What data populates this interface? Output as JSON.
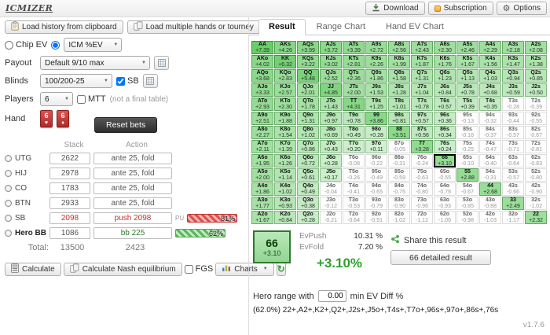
{
  "app": {
    "logo": "ICMIZER",
    "version": "v1.7.6"
  },
  "icons": {
    "caret": "▼",
    "gear": "⚙",
    "refresh": "↻"
  },
  "topbar": {
    "download": "Download",
    "subscription": "Subscription",
    "options": "Options"
  },
  "left": {
    "load_clipboard": "Load history from clipboard",
    "load_multiple": "Load multiple hands or tourney",
    "mode": {
      "chip_ev": "Chip EV",
      "icm_ev": "ICM %EV"
    },
    "payout": {
      "label": "Payout",
      "value": "Default 9/10 max"
    },
    "blinds": {
      "label": "Blinds",
      "value": "100/200-25",
      "sb": "SB"
    },
    "players": {
      "label": "Players",
      "value": "6",
      "mtt": "MTT",
      "note": "(not a final table)"
    },
    "hand": {
      "label": "Hand",
      "card1_rank": "6",
      "card1_suit": "♥",
      "card2_rank": "6",
      "card2_suit": "♦"
    },
    "reset_bets": "Reset bets",
    "table": {
      "col_stack": "Stack",
      "col_action": "Action",
      "rows": [
        {
          "pos": "UTG",
          "stack": "2622",
          "action": "ante 25, fold",
          "cls": "",
          "badge": "",
          "pct": ""
        },
        {
          "pos": "HIJ",
          "stack": "2978",
          "action": "ante 25, fold",
          "cls": "",
          "badge": "",
          "pct": ""
        },
        {
          "pos": "CO",
          "stack": "1783",
          "action": "ante 25, fold",
          "cls": "",
          "badge": "",
          "pct": ""
        },
        {
          "pos": "BTN",
          "stack": "2933",
          "action": "ante 25, fold",
          "cls": "",
          "badge": "",
          "pct": ""
        },
        {
          "pos": "SB",
          "stack": "2098",
          "action": "push 2098",
          "cls": "sb",
          "badge": "PU",
          "pct": "81%"
        },
        {
          "pos": "Hero BB",
          "stack": "1086",
          "action": "bb 225",
          "cls": "bb",
          "badge": "",
          "pct": "62%"
        }
      ],
      "total_label": "Total:",
      "total_stack": "13500",
      "total_action": "2423"
    },
    "actions": {
      "calculate": "Calculate",
      "calculate_nash": "Calculate Nash equilibrium",
      "fgs": "FGS",
      "charts": "Charts"
    }
  },
  "right": {
    "tabs": [
      {
        "label": "Result"
      },
      {
        "label": "Range Chart"
      },
      {
        "label": "Hand EV Chart"
      }
    ],
    "grid": [
      [
        [
          "AA",
          "+7.39"
        ],
        [
          "AKs",
          "+4.26"
        ],
        [
          "AQs",
          "+3.99"
        ],
        [
          "AJs",
          "+3.72"
        ],
        [
          "ATs",
          "+3.39"
        ],
        [
          "A9s",
          "+2.72"
        ],
        [
          "A8s",
          "+2.56"
        ],
        [
          "A7s",
          "+2.43"
        ],
        [
          "A6s",
          "+2.30"
        ],
        [
          "A5s",
          "+2.46"
        ],
        [
          "A4s",
          "+2.29"
        ],
        [
          "A3s",
          "+2.18"
        ],
        [
          "A2s",
          "+2.08"
        ]
      ],
      [
        [
          "AKo",
          "+4.02"
        ],
        [
          "KK",
          "+6.32"
        ],
        [
          "KQs",
          "+3.22"
        ],
        [
          "KJs",
          "+3.02"
        ],
        [
          "KTs",
          "+2.81"
        ],
        [
          "K9s",
          "+2.26"
        ],
        [
          "K8s",
          "+1.99"
        ],
        [
          "K7s",
          "+1.87"
        ],
        [
          "K6s",
          "+1.76"
        ],
        [
          "K5s",
          "+1.67"
        ],
        [
          "K4s",
          "+1.56"
        ],
        [
          "K3s",
          "+1.47"
        ],
        [
          "K2s",
          "+1.38"
        ]
      ],
      [
        [
          "AQo",
          "+3.68"
        ],
        [
          "KQo",
          "+2.83"
        ],
        [
          "QQ",
          "+5.48"
        ],
        [
          "QJs",
          "+2.52"
        ],
        [
          "QTs",
          "+2.36"
        ],
        [
          "Q9s",
          "+1.86"
        ],
        [
          "Q8s",
          "+1.58"
        ],
        [
          "Q7s",
          "+1.31"
        ],
        [
          "Q6s",
          "+1.23"
        ],
        [
          "Q5s",
          "+1.13"
        ],
        [
          "Q4s",
          "+1.03"
        ],
        [
          "Q3s",
          "+0.94"
        ],
        [
          "Q2s",
          "+0.85"
        ]
      ],
      [
        [
          "AJo",
          "+3.33"
        ],
        [
          "KJo",
          "+2.57"
        ],
        [
          "QJo",
          "+2.01"
        ],
        [
          "JJ",
          "+4.85"
        ],
        [
          "JTs",
          "+2.00"
        ],
        [
          "J9s",
          "+1.53"
        ],
        [
          "J8s",
          "+1.28"
        ],
        [
          "J7s",
          "+1.04"
        ],
        [
          "J6s",
          "+0.84"
        ],
        [
          "J5s",
          "+0.78"
        ],
        [
          "J4s",
          "+0.68"
        ],
        [
          "J3s",
          "+0.59"
        ],
        [
          "J2s",
          "+0.50"
        ]
      ],
      [
        [
          "ATo",
          "+2.93"
        ],
        [
          "KTo",
          "+2.30"
        ],
        [
          "QTo",
          "+1.78"
        ],
        [
          "JTo",
          "+1.43"
        ],
        [
          "TT",
          "+4.31"
        ],
        [
          "T9s",
          "+1.25"
        ],
        [
          "T8s",
          "+1.01"
        ],
        [
          "T7s",
          "+0.78"
        ],
        [
          "T6s",
          "+0.57"
        ],
        [
          "T5s",
          "+0.39"
        ],
        [
          "T4s",
          "+0.35"
        ],
        [
          "T3s",
          "-0.28"
        ],
        [
          "T2s",
          "-0.39"
        ]
      ],
      [
        [
          "A9o",
          "+2.51"
        ],
        [
          "K9o",
          "+1.88"
        ],
        [
          "Q9o",
          "+1.31"
        ],
        [
          "J9o",
          "+0.97"
        ],
        [
          "T9o",
          "+0.78"
        ],
        [
          "99",
          "+3.86"
        ],
        [
          "98s",
          "+0.81"
        ],
        [
          "97s",
          "+0.57"
        ],
        [
          "96s",
          "+0.36"
        ],
        [
          "95s",
          "-0.13"
        ],
        [
          "94s",
          "-0.32"
        ],
        [
          "93s",
          "-0.44"
        ],
        [
          "92s",
          "-0.55"
        ]
      ],
      [
        [
          "A8o",
          "+2.27"
        ],
        [
          "K8o",
          "+1.54"
        ],
        [
          "Q8o",
          "+1.02"
        ],
        [
          "J8o",
          "+0.69"
        ],
        [
          "T8o",
          "+0.49"
        ],
        [
          "98o",
          "+0.28"
        ],
        [
          "88",
          "+3.51"
        ],
        [
          "87s",
          "+0.56"
        ],
        [
          "86s",
          "+0.34"
        ],
        [
          "85s",
          "-0.16"
        ],
        [
          "84s",
          "-0.37"
        ],
        [
          "83s",
          "-0.57"
        ],
        [
          "82s",
          "-0.67"
        ]
      ],
      [
        [
          "A7o",
          "+2.11"
        ],
        [
          "K7o",
          "+1.39"
        ],
        [
          "Q7o",
          "+0.86"
        ],
        [
          "J7o",
          "+0.43"
        ],
        [
          "T7o",
          "+0.20"
        ],
        [
          "97o",
          "+0.11"
        ],
        [
          "87o",
          "-0.05"
        ],
        [
          "77",
          "+3.28"
        ],
        [
          "76s",
          "+0.24"
        ],
        [
          "75s",
          "-0.25"
        ],
        [
          "74s",
          "-0.47"
        ],
        [
          "73s",
          "-0.71"
        ],
        [
          "72s",
          "-0.81"
        ]
      ],
      [
        [
          "A6o",
          "+1.95"
        ],
        [
          "K6o",
          "+1.26"
        ],
        [
          "Q6o",
          "+0.72"
        ],
        [
          "J6o",
          "+0.28"
        ],
        [
          "T6o",
          "-0.08"
        ],
        [
          "96o",
          "-0.22"
        ],
        [
          "86o",
          "-0.31"
        ],
        [
          "76o",
          "-0.24"
        ],
        [
          "66",
          "+3.10"
        ],
        [
          "65s",
          "-0.10"
        ],
        [
          "64s",
          "-0.40"
        ],
        [
          "63s",
          "-0.64"
        ],
        [
          "62s",
          "-0.83"
        ]
      ],
      [
        [
          "A5o",
          "+2.00"
        ],
        [
          "K5o",
          "+1.14"
        ],
        [
          "Q5o",
          "+0.61"
        ],
        [
          "J5o",
          "+0.17"
        ],
        [
          "T5o",
          "-0.26"
        ],
        [
          "95o",
          "-0.49"
        ],
        [
          "85o",
          "-0.59"
        ],
        [
          "75o",
          "-0.63"
        ],
        [
          "65o",
          "-0.55"
        ],
        [
          "55",
          "+2.88"
        ],
        [
          "54s",
          "-0.31"
        ],
        [
          "53s",
          "-0.57"
        ],
        [
          "52s",
          "-0.80"
        ]
      ],
      [
        [
          "A4o",
          "+1.86"
        ],
        [
          "K4o",
          "+1.02"
        ],
        [
          "Q4o",
          "+0.49"
        ],
        [
          "J4o",
          "-0.04"
        ],
        [
          "T4o",
          "-0.41"
        ],
        [
          "94o",
          "-0.65"
        ],
        [
          "84o",
          "-0.75"
        ],
        [
          "74o",
          "-0.80"
        ],
        [
          "64o",
          "-0.76"
        ],
        [
          "54o",
          "-0.67"
        ],
        [
          "44",
          "+2.68"
        ],
        [
          "43s",
          "-0.66"
        ],
        [
          "42s",
          "-0.90"
        ]
      ],
      [
        [
          "A3o",
          "+1.77"
        ],
        [
          "K3o",
          "+0.93"
        ],
        [
          "Q3o",
          "+0.38"
        ],
        [
          "J3o",
          "-0.12"
        ],
        [
          "T3o",
          "-0.53"
        ],
        [
          "93o",
          "-0.79"
        ],
        [
          "83o",
          "-0.90"
        ],
        [
          "73o",
          "-0.96"
        ],
        [
          "63o",
          "-0.93"
        ],
        [
          "53o",
          "-0.85"
        ],
        [
          "43o",
          "-0.88"
        ],
        [
          "33",
          "+2.49"
        ],
        [
          "32s",
          "-1.02"
        ]
      ],
      [
        [
          "A2o",
          "+1.67"
        ],
        [
          "K2o",
          "+0.84"
        ],
        [
          "Q2o",
          "+0.28"
        ],
        [
          "J2o",
          "-0.21"
        ],
        [
          "T2o",
          "-0.64"
        ],
        [
          "92o",
          "-0.91"
        ],
        [
          "82o",
          "-1.02"
        ],
        [
          "72o",
          "-1.12"
        ],
        [
          "62o",
          "-1.06"
        ],
        [
          "52o",
          "-0.98"
        ],
        [
          "42o",
          "-1.03"
        ],
        [
          "32o",
          "-1.17"
        ],
        [
          "22",
          "+2.32"
        ]
      ]
    ],
    "selected": {
      "hand": "66",
      "ev": "+3.10",
      "evpush_label": "EvPush",
      "evpush_value": "10.31 %",
      "evfold_label": "EvFold",
      "evfold_value": "7.20 %",
      "diff": "+3.10%"
    },
    "share_label": "Share this result",
    "detailed_label": "66 detailed result",
    "hero_range": {
      "prefix": "Hero range with",
      "min_ev": "0.00",
      "suffix": "min EV Diff %"
    },
    "range_text": "(62.0%) 22+,A2+,K2+,Q2+,J2s+,J5o+,T4s+,T7o+,96s+,97o+,86s+,76s"
  }
}
